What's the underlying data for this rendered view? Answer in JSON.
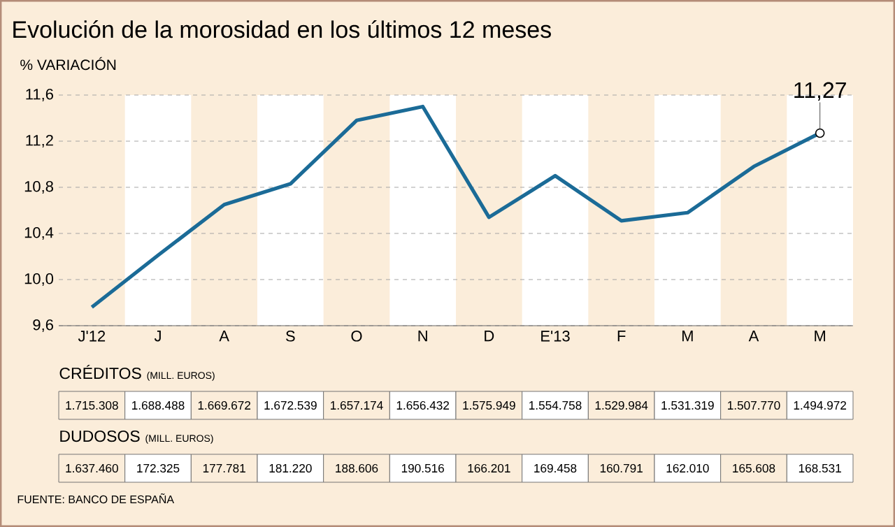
{
  "chart_data": {
    "type": "line",
    "title": "Evolución de la morosidad en los últimos 12 meses",
    "ylabel": "% VARIACIÓN",
    "categories": [
      "J'12",
      "J",
      "A",
      "S",
      "O",
      "N",
      "D",
      "E'13",
      "F",
      "M",
      "A",
      "M"
    ],
    "series": [
      {
        "color": "#1b6b97",
        "values": [
          9.76,
          10.21,
          10.65,
          10.83,
          11.38,
          11.5,
          10.54,
          10.9,
          10.51,
          10.58,
          10.98,
          11.27
        ],
        "value_labels": [
          null,
          null,
          null,
          null,
          null,
          null,
          null,
          null,
          null,
          null,
          null,
          "11,27"
        ]
      }
    ],
    "ylim": [
      9.6,
      11.6
    ],
    "yticks": [
      {
        "value": 9.6,
        "label": "9,6"
      },
      {
        "value": 10.0,
        "label": "10,0"
      },
      {
        "value": 10.4,
        "label": "10,4"
      },
      {
        "value": 10.8,
        "label": "10,8"
      },
      {
        "value": 11.2,
        "label": "11,2"
      },
      {
        "value": 11.6,
        "label": "11,6"
      }
    ],
    "grid": "y",
    "annotations": [
      "CRÉDITOS",
      "(MILL. EUROS)",
      "1.715.308",
      "1.688.488",
      "1.669.672",
      "1.672.539",
      "1.657.174",
      "1.656.432",
      "1.575.949",
      "1.554.758",
      "1.529.984",
      "1.531.319",
      "1.507.770",
      "1.494.972",
      "DUDOSOS",
      "(MILL. EUROS)",
      "1.637.460",
      "172.325",
      "177.781",
      "181.220",
      "188.606",
      "190.516",
      "166.201",
      "169.458",
      "160.791",
      "162.010",
      "165.608",
      "168.531",
      "FUENTE: BANCO DE ESPAÑA"
    ]
  }
}
